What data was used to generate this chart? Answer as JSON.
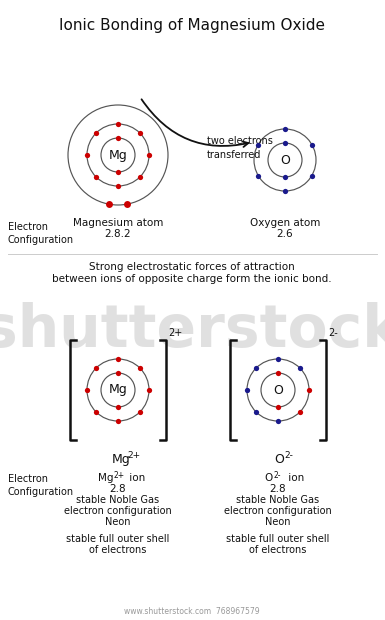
{
  "title": "Ionic Bonding of Magnesium Oxide",
  "bg_color": "#ffffff",
  "red": "#cc0000",
  "blue": "#1a1a8c",
  "dark": "#111111",
  "gray_line": "#cccccc",
  "watermark": "www.shutterstock.com  768967579",
  "transfer_text": "two electrons\ntransferred",
  "middle_text1": "Strong electrostatic forces of attraction",
  "middle_text2": "between ions of opposite charge form the ionic bond.",
  "fig_w": 3.85,
  "fig_h": 6.2,
  "dpi": 100
}
